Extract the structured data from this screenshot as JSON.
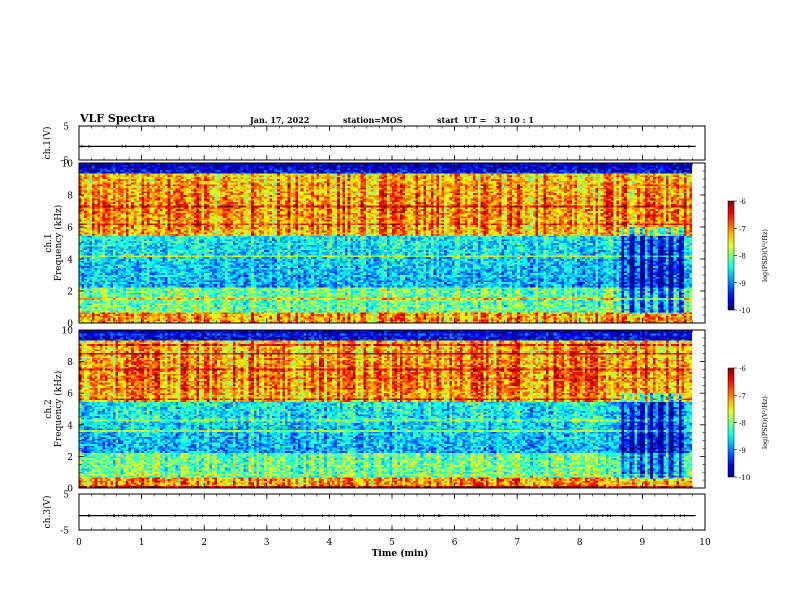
{
  "header": {
    "title": "VLF Spectra",
    "date": "Jan. 17, 2022",
    "station": "station=MOS",
    "start": "start  UT =   3 : 10 : 1"
  },
  "chart_data": [
    {
      "type": "line",
      "name": "ch1-voltage",
      "ylabel": "ch.1(V)",
      "ylim": [
        -5,
        5
      ],
      "yticks": [
        "5",
        "-5"
      ],
      "value": -1
    },
    {
      "type": "heatmap",
      "name": "ch1-spectrogram",
      "ylabel_1": "ch.1",
      "ylabel_2": "Frequency (kHz)",
      "ylim": [
        0,
        10
      ],
      "yticks": [
        "0",
        "2",
        "4",
        "6",
        "8",
        "10"
      ],
      "xlim": [
        0,
        9.8
      ],
      "colorbar": {
        "label": "log(PSD)(V²/Hz)",
        "range": [
          -10,
          -6
        ],
        "ticks": [
          "-6",
          "-7",
          "-8",
          "-9",
          "-10"
        ]
      }
    },
    {
      "type": "heatmap",
      "name": "ch2-spectrogram",
      "ylabel_1": "ch.2",
      "ylabel_2": "Frequency (kHz)",
      "ylim": [
        0,
        10
      ],
      "yticks": [
        "0",
        "2",
        "4",
        "6",
        "8",
        "10"
      ],
      "xlim": [
        0,
        9.8
      ],
      "colorbar": {
        "label": "log(PSD)(V²/Hz)",
        "range": [
          -10,
          -6
        ],
        "ticks": [
          "-6",
          "-7",
          "-8",
          "-9",
          "-10"
        ]
      }
    },
    {
      "type": "line",
      "name": "ch3-voltage",
      "ylabel": "ch.3(V)",
      "ylim": [
        -5,
        5
      ],
      "yticks": [
        "5",
        "-5"
      ],
      "value": -1
    }
  ],
  "xaxis": {
    "label": "Time  (min)",
    "range": [
      0,
      10
    ],
    "ticks": [
      "0",
      "1",
      "2",
      "3",
      "4",
      "5",
      "6",
      "7",
      "8",
      "9",
      "10"
    ]
  }
}
